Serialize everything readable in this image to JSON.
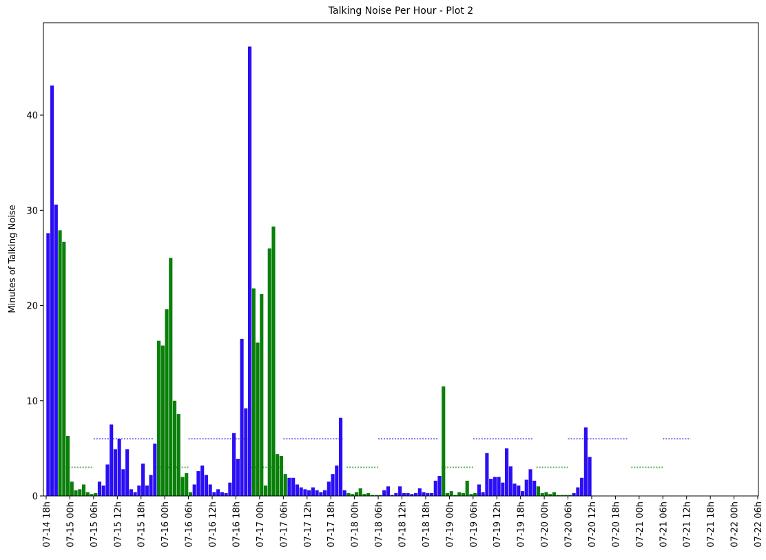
{
  "chart_data": {
    "type": "bar",
    "title": "Talking Noise Per Hour - Plot 2",
    "ylabel": "Minutes of Talking Noise",
    "x": [
      "07-14 18h",
      "07-14 19h",
      "07-14 20h",
      "07-14 21h",
      "07-14 22h",
      "07-14 23h",
      "07-15 00h",
      "07-15 01h",
      "07-15 02h",
      "07-15 03h",
      "07-15 04h",
      "07-15 05h",
      "07-15 06h",
      "07-15 07h",
      "07-15 08h",
      "07-15 09h",
      "07-15 10h",
      "07-15 11h",
      "07-15 12h",
      "07-15 13h",
      "07-15 14h",
      "07-15 15h",
      "07-15 16h",
      "07-15 17h",
      "07-15 18h",
      "07-15 19h",
      "07-15 20h",
      "07-15 21h",
      "07-15 22h",
      "07-15 23h",
      "07-16 00h",
      "07-16 01h",
      "07-16 02h",
      "07-16 03h",
      "07-16 04h",
      "07-16 05h",
      "07-16 06h",
      "07-16 07h",
      "07-16 08h",
      "07-16 09h",
      "07-16 10h",
      "07-16 11h",
      "07-16 12h",
      "07-16 13h",
      "07-16 14h",
      "07-16 15h",
      "07-16 16h",
      "07-16 17h",
      "07-16 18h",
      "07-16 19h",
      "07-16 20h",
      "07-16 21h",
      "07-16 22h",
      "07-16 23h",
      "07-17 00h",
      "07-17 01h",
      "07-17 02h",
      "07-17 03h",
      "07-17 04h",
      "07-17 05h",
      "07-17 06h",
      "07-17 07h",
      "07-17 08h",
      "07-17 09h",
      "07-17 10h",
      "07-17 11h",
      "07-17 12h",
      "07-17 13h",
      "07-17 14h",
      "07-17 15h",
      "07-17 16h",
      "07-17 17h",
      "07-17 18h",
      "07-17 19h",
      "07-17 20h",
      "07-17 21h",
      "07-17 22h",
      "07-17 23h",
      "07-18 00h",
      "07-18 01h",
      "07-18 02h",
      "07-18 03h",
      "07-18 04h",
      "07-18 05h",
      "07-18 06h",
      "07-18 07h",
      "07-18 08h",
      "07-18 09h",
      "07-18 10h",
      "07-18 11h",
      "07-18 12h",
      "07-18 13h",
      "07-18 14h",
      "07-18 15h",
      "07-18 16h",
      "07-18 17h",
      "07-18 18h",
      "07-18 19h",
      "07-18 20h",
      "07-18 21h",
      "07-18 22h",
      "07-18 23h",
      "07-19 00h",
      "07-19 01h",
      "07-19 02h",
      "07-19 03h",
      "07-19 04h",
      "07-19 05h",
      "07-19 06h",
      "07-19 07h",
      "07-19 08h",
      "07-19 09h",
      "07-19 10h",
      "07-19 11h",
      "07-19 12h",
      "07-19 13h",
      "07-19 14h",
      "07-19 15h",
      "07-19 16h",
      "07-19 17h",
      "07-19 18h",
      "07-19 19h",
      "07-19 20h",
      "07-19 21h",
      "07-19 22h",
      "07-19 23h",
      "07-20 00h",
      "07-20 01h",
      "07-20 02h",
      "07-20 03h",
      "07-20 04h",
      "07-20 05h",
      "07-20 06h",
      "07-20 07h",
      "07-20 08h",
      "07-20 09h",
      "07-20 10h",
      "07-20 11h"
    ],
    "series": [
      {
        "color": "#2a0ff5",
        "values": [
          27.6,
          43.1,
          30.6,
          null,
          null,
          null,
          null,
          null,
          null,
          null,
          null,
          null,
          null,
          1.5,
          1.1,
          3.3,
          7.5,
          4.9,
          6.0,
          2.8,
          4.9,
          0.7,
          0.4,
          1.1,
          3.4,
          1.1,
          2.2,
          5.5,
          null,
          null,
          null,
          null,
          null,
          null,
          null,
          null,
          null,
          1.2,
          2.6,
          3.2,
          2.2,
          1.2,
          0.4,
          0.7,
          0.4,
          0.3,
          1.4,
          6.6,
          3.9,
          16.5,
          9.2,
          47.2,
          null,
          null,
          null,
          null,
          null,
          null,
          null,
          null,
          null,
          1.9,
          1.9,
          1.2,
          0.9,
          0.7,
          0.6,
          0.9,
          0.6,
          0.4,
          0.6,
          1.5,
          2.3,
          3.2,
          8.2,
          0.6,
          null,
          null,
          null,
          null,
          null,
          null,
          null,
          null,
          null,
          0.6,
          1.0,
          0.1,
          0.3,
          1.0,
          0.3,
          0.3,
          0.2,
          0.3,
          0.8,
          0.4,
          0.3,
          0.3,
          1.6,
          2.1,
          null,
          null,
          null,
          null,
          null,
          null,
          null,
          null,
          null,
          1.2,
          0.4,
          4.5,
          1.8,
          2.0,
          2.0,
          1.4,
          5.0,
          3.1,
          1.3,
          1.1,
          0.5,
          1.7,
          2.8,
          1.6,
          null,
          null,
          null,
          null,
          null,
          null,
          null,
          null,
          null,
          0.3,
          0.9,
          1.9,
          7.2,
          4.1
        ]
      },
      {
        "color": "#0a800a",
        "values": [
          null,
          null,
          null,
          27.9,
          26.7,
          6.3,
          1.5,
          0.6,
          0.7,
          1.2,
          0.4,
          0.2,
          0.3,
          null,
          null,
          null,
          null,
          null,
          null,
          null,
          null,
          null,
          null,
          null,
          null,
          null,
          null,
          null,
          16.3,
          15.8,
          19.6,
          25.0,
          10.0,
          8.6,
          2.0,
          2.4,
          0.4,
          null,
          null,
          null,
          null,
          null,
          null,
          null,
          null,
          null,
          null,
          null,
          null,
          null,
          null,
          null,
          21.8,
          16.1,
          21.2,
          1.1,
          26.0,
          28.3,
          4.4,
          4.2,
          2.3,
          null,
          null,
          null,
          null,
          null,
          null,
          null,
          null,
          null,
          null,
          null,
          null,
          null,
          null,
          null,
          0.3,
          0.2,
          0.4,
          0.8,
          0.2,
          0.3,
          0.1,
          0.1,
          0.1,
          null,
          null,
          null,
          null,
          null,
          null,
          null,
          null,
          null,
          null,
          null,
          null,
          null,
          null,
          null,
          11.5,
          0.3,
          0.5,
          0.1,
          0.4,
          0.3,
          1.6,
          0.2,
          0.3,
          null,
          null,
          null,
          null,
          null,
          null,
          null,
          null,
          null,
          null,
          null,
          null,
          null,
          null,
          null,
          1.0,
          0.3,
          0.4,
          0.2,
          0.4,
          0.1,
          0.1,
          0.1,
          0.1,
          null,
          null,
          null,
          null,
          null
        ]
      }
    ],
    "reference_lines": [
      {
        "color": "#8080f0",
        "value": 6,
        "segments": [
          [
            "07-15 06h",
            "07-15 21h"
          ],
          [
            "07-16 06h",
            "07-16 21h"
          ],
          [
            "07-17 06h",
            "07-17 21h"
          ],
          [
            "07-18 06h",
            "07-18 21h"
          ],
          [
            "07-19 06h",
            "07-19 21h"
          ],
          [
            "07-20 06h",
            "07-20 21h"
          ],
          [
            "07-21 06h",
            "07-21 13h"
          ]
        ]
      },
      {
        "color": "#60b060",
        "value": 3,
        "segments": [
          [
            "07-14 23h",
            "07-15 06h"
          ],
          [
            "07-15 22h",
            "07-16 06h"
          ],
          [
            "07-16 22h",
            "07-17 06h"
          ],
          [
            "07-17 22h",
            "07-18 06h"
          ],
          [
            "07-18 22h",
            "07-19 06h"
          ],
          [
            "07-19 22h",
            "07-20 06h"
          ],
          [
            "07-20 22h",
            "07-21 06h"
          ]
        ]
      }
    ],
    "xlim": [
      "07-14 18h",
      "07-22 06h"
    ],
    "xticks": [
      "07-14 18h",
      "07-15 00h",
      "07-15 06h",
      "07-15 12h",
      "07-15 18h",
      "07-16 00h",
      "07-16 06h",
      "07-16 12h",
      "07-16 18h",
      "07-17 00h",
      "07-17 06h",
      "07-17 12h",
      "07-17 18h",
      "07-18 00h",
      "07-18 06h",
      "07-18 12h",
      "07-18 18h",
      "07-19 00h",
      "07-19 06h",
      "07-19 12h",
      "07-19 18h",
      "07-20 00h",
      "07-20 06h",
      "07-20 12h",
      "07-20 18h",
      "07-21 00h",
      "07-21 06h",
      "07-21 12h",
      "07-21 18h",
      "07-22 00h",
      "07-22 06h"
    ],
    "ylim": [
      0,
      49.7
    ],
    "yticks": [
      0,
      10,
      20,
      30,
      40
    ]
  }
}
